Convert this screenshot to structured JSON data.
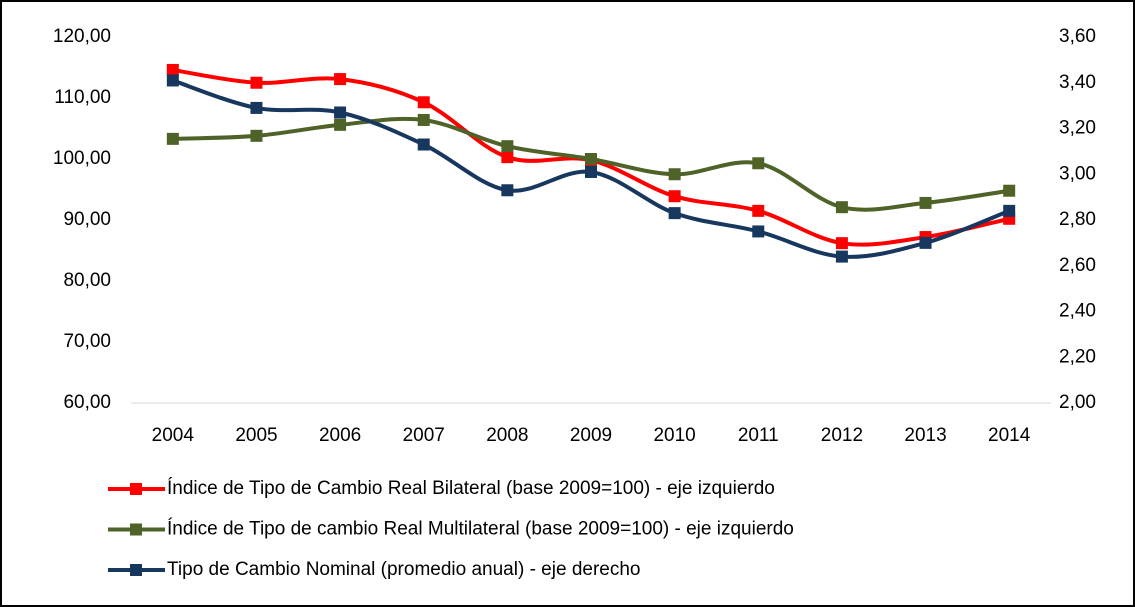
{
  "chart_data": {
    "type": "line",
    "categories": [
      "2004",
      "2005",
      "2006",
      "2007",
      "2008",
      "2009",
      "2010",
      "2011",
      "2012",
      "2013",
      "2014"
    ],
    "series": [
      {
        "name": "Índice de Tipo de Cambio Real Bilateral (base 2009=100) - eje izquierdo",
        "color": "#ff0000",
        "values": [
          114.6,
          112.5,
          113.1,
          109.3,
          100.3,
          99.8,
          93.9,
          91.5,
          86.2,
          87.2,
          90.2
        ]
      },
      {
        "name": "Índice de Tipo de cambio Real Multilateral (base 2009=100) - eje izquierdo",
        "color": "#4f6228",
        "values": [
          103.3,
          103.8,
          105.6,
          106.4,
          102.1,
          100.0,
          97.5,
          99.3,
          92.1,
          92.8,
          94.8
        ]
      },
      {
        "name": "Tipo de Cambio Nominal (promedio anual) - eje derecho",
        "color": "#17375e",
        "axis": "y2",
        "values": [
          3.41,
          3.29,
          3.27,
          3.13,
          2.93,
          3.01,
          2.83,
          2.75,
          2.64,
          2.7,
          2.84
        ]
      }
    ],
    "ylim": [
      60,
      120
    ],
    "yticks": [
      {
        "value": 60,
        "label": "60,00"
      },
      {
        "value": 70,
        "label": "70,00"
      },
      {
        "value": 80,
        "label": "80,00"
      },
      {
        "value": 90,
        "label": "90,00"
      },
      {
        "value": 100,
        "label": "100,00"
      },
      {
        "value": 110,
        "label": "110,00"
      },
      {
        "value": 120,
        "label": "120,00"
      }
    ],
    "y2lim": [
      2,
      3.6
    ],
    "y2ticks": [
      {
        "value": 2,
        "label": "2,00"
      },
      {
        "value": 2.2,
        "label": "2,20"
      },
      {
        "value": 2.4,
        "label": "2,40"
      },
      {
        "value": 2.6,
        "label": "2,60"
      },
      {
        "value": 2.8,
        "label": "2,80"
      },
      {
        "value": 3,
        "label": "3,00"
      },
      {
        "value": 3.2,
        "label": "3,20"
      },
      {
        "value": 3.4,
        "label": "3,40"
      },
      {
        "value": 3.6,
        "label": "3,60"
      }
    ],
    "legend": "bottom"
  }
}
